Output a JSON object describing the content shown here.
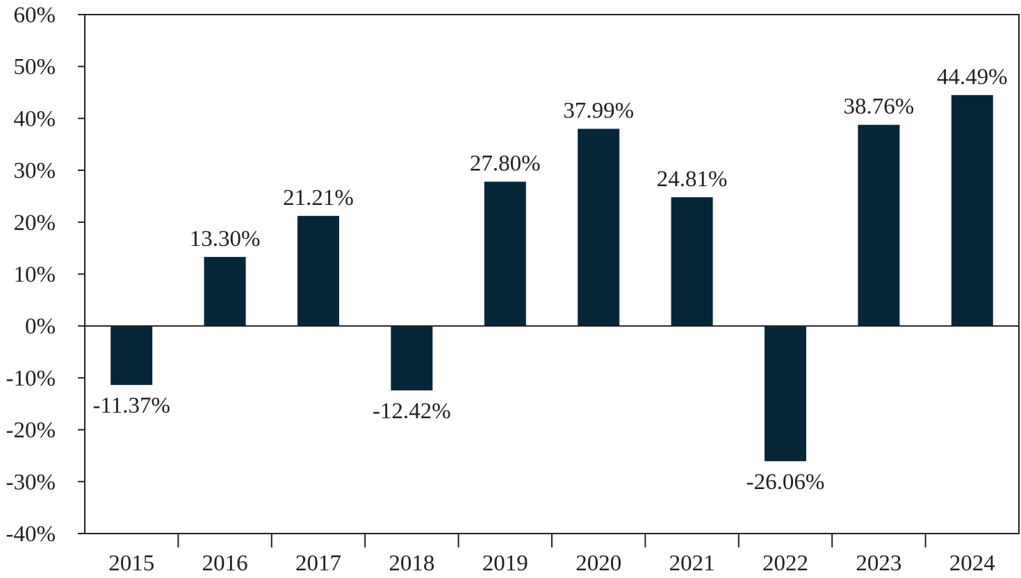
{
  "chart_data": {
    "type": "bar",
    "title": "",
    "xlabel": "",
    "ylabel": "",
    "categories": [
      "2015",
      "2016",
      "2017",
      "2018",
      "2019",
      "2020",
      "2021",
      "2022",
      "2023",
      "2024"
    ],
    "values": [
      -11.37,
      13.3,
      21.21,
      -12.42,
      27.8,
      37.99,
      24.81,
      -26.06,
      38.76,
      44.49
    ],
    "value_labels": [
      "-11.37%",
      "13.30%",
      "21.21%",
      "-12.42%",
      "27.80%",
      "37.99%",
      "24.81%",
      "-26.06%",
      "38.76%",
      "44.49%"
    ],
    "ylim": [
      -40,
      60
    ],
    "y_ticks": [
      60,
      50,
      40,
      30,
      20,
      10,
      0,
      -10,
      -20,
      -30,
      -40
    ],
    "y_tick_labels": [
      "60%",
      "50%",
      "40%",
      "30%",
      "20%",
      "10%",
      "0%",
      "-10%",
      "-20%",
      "-30%",
      "-40%"
    ],
    "bar_color": "#06263a",
    "grid": false,
    "legend": "none"
  }
}
